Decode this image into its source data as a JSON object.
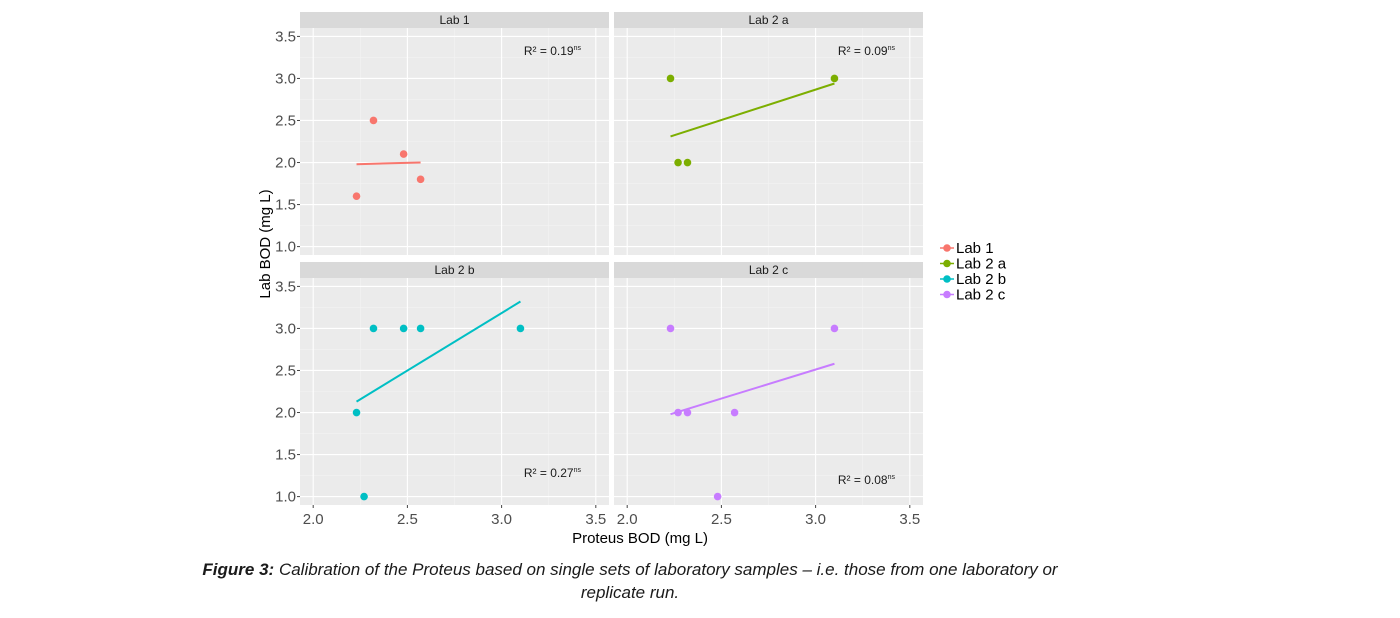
{
  "chart_data": {
    "type": "scatter",
    "xlabel": "Proteus BOD (mg L)",
    "ylabel": "Lab BOD (mg L)",
    "xlim": [
      1.93,
      3.57
    ],
    "ylim": [
      0.9,
      3.6
    ],
    "x_ticks": [
      "2.0",
      "2.5",
      "3.0",
      "3.5"
    ],
    "y_ticks": [
      "1.0",
      "1.5",
      "2.0",
      "2.5",
      "3.0",
      "3.5"
    ],
    "grid": true,
    "legend_position": "right",
    "panels": [
      {
        "name": "Lab 1",
        "color": "#f8766d",
        "points": [
          [
            2.23,
            1.6
          ],
          [
            2.32,
            2.5
          ],
          [
            2.48,
            2.1
          ],
          [
            2.57,
            1.8
          ]
        ],
        "fit": [
          [
            2.23,
            1.98
          ],
          [
            2.57,
            2.0
          ]
        ],
        "r2_label": "R² = 0.19",
        "r2_sup": "ns",
        "r2_position": "top-right"
      },
      {
        "name": "Lab 2 a",
        "color": "#7cae00",
        "points": [
          [
            2.23,
            3.0
          ],
          [
            2.27,
            2.0
          ],
          [
            2.32,
            2.0
          ],
          [
            3.1,
            3.0
          ]
        ],
        "fit": [
          [
            2.23,
            2.31
          ],
          [
            3.1,
            2.94
          ]
        ],
        "r2_label": "R² = 0.09",
        "r2_sup": "ns",
        "r2_position": "top-right"
      },
      {
        "name": "Lab 2 b",
        "color": "#00bfc4",
        "points": [
          [
            2.23,
            2.0
          ],
          [
            2.27,
            1.0
          ],
          [
            2.32,
            3.0
          ],
          [
            2.48,
            3.0
          ],
          [
            2.57,
            3.0
          ],
          [
            3.1,
            3.0
          ]
        ],
        "fit": [
          [
            2.23,
            2.13
          ],
          [
            3.1,
            3.32
          ]
        ],
        "r2_label": "R² = 0.27",
        "r2_sup": "ns",
        "r2_position": "bottom-right"
      },
      {
        "name": "Lab 2 c",
        "color": "#c77cff",
        "points": [
          [
            2.23,
            3.0
          ],
          [
            2.27,
            2.0
          ],
          [
            2.32,
            2.0
          ],
          [
            2.48,
            1.0
          ],
          [
            2.57,
            2.0
          ],
          [
            3.1,
            3.0
          ]
        ],
        "fit": [
          [
            2.23,
            1.98
          ],
          [
            3.1,
            2.58
          ]
        ],
        "r2_label": "R² = 0.08",
        "r2_sup": "ns",
        "r2_position": "bottom-right"
      }
    ]
  },
  "caption": {
    "label": "Figure 3:",
    "text": "Calibration of the Proteus based on single sets of laboratory samples – i.e. those from one laboratory or replicate run."
  }
}
